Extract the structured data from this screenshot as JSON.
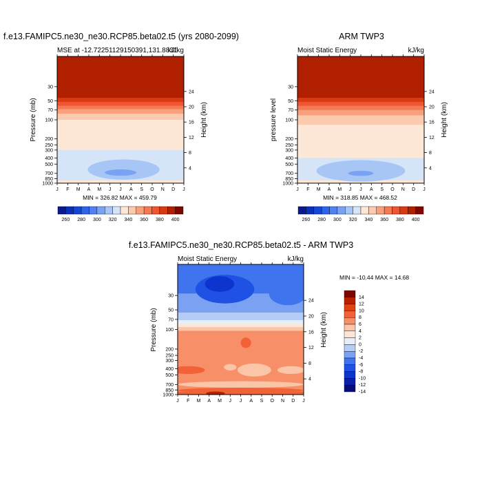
{
  "chart_data": [
    {
      "type": "heatmap",
      "title": "f.e13.FAMIPC5.ne30_ne30.RCP85.beta02.t5 (yrs 2080-2099)",
      "left_label": "MSE at -12.72251129150391,131.8831",
      "right_label": "kJ/kg",
      "ylabel": "Pressure (mb)",
      "ylabel_right": "Height (km)",
      "min_max_text": "MIN = 326.82 MAX = 459.79",
      "min": 326.82,
      "max": 459.79,
      "x_ticks": [
        "J",
        "F",
        "M",
        "A",
        "M",
        "J",
        "J",
        "A",
        "S",
        "O",
        "N",
        "D",
        "J"
      ],
      "colorbar_labels": [
        "260",
        "280",
        "300",
        "320",
        "340",
        "360",
        "380",
        "400"
      ],
      "bands": [
        {
          "p_top": 10,
          "p_bot": 45,
          "value": 405
        },
        {
          "p_top": 45,
          "p_bot": 52,
          "value": 395
        },
        {
          "p_top": 52,
          "p_bot": 60,
          "value": 385
        },
        {
          "p_top": 60,
          "p_bot": 68,
          "value": 375
        },
        {
          "p_top": 68,
          "p_bot": 80,
          "value": 365
        },
        {
          "p_top": 80,
          "p_bot": 100,
          "value": 355
        },
        {
          "p_top": 100,
          "p_bot": 300,
          "value": 345
        },
        {
          "p_top": 300,
          "p_bot": 1000,
          "value": 335
        }
      ],
      "blobs": [
        {
          "cx": 6.3,
          "p": 610,
          "rx": 3.4,
          "ry_log": 0.16,
          "value": 325
        },
        {
          "cx": 6.0,
          "p": 680,
          "rx": 1.5,
          "ry_log": 0.05,
          "value": 315
        }
      ],
      "surface_value": 340
    },
    {
      "type": "heatmap",
      "title": "ARM TWP3",
      "left_label": "Moist Static Energy",
      "right_label": "kJ/kg",
      "ylabel": "pressure level",
      "ylabel_right": "Height (km)",
      "min_max_text": "MIN = 318.85 MAX = 468.52",
      "min": 318.85,
      "max": 468.52,
      "x_ticks": [
        "J",
        "F",
        "M",
        "A",
        "M",
        "J",
        "J",
        "A",
        "S",
        "O",
        "N",
        "D",
        "J"
      ],
      "colorbar_labels": [
        "260",
        "280",
        "300",
        "320",
        "340",
        "360",
        "380",
        "400"
      ],
      "bands": [
        {
          "p_top": 10,
          "p_bot": 45,
          "value": 405
        },
        {
          "p_top": 45,
          "p_bot": 52,
          "value": 395
        },
        {
          "p_top": 52,
          "p_bot": 60,
          "value": 385
        },
        {
          "p_top": 60,
          "p_bot": 70,
          "value": 375
        },
        {
          "p_top": 70,
          "p_bot": 85,
          "value": 365
        },
        {
          "p_top": 85,
          "p_bot": 120,
          "value": 355
        },
        {
          "p_top": 120,
          "p_bot": 400,
          "value": 345
        },
        {
          "p_top": 400,
          "p_bot": 1000,
          "value": 335
        }
      ],
      "blobs": [
        {
          "cx": 6.0,
          "p": 640,
          "rx": 4.2,
          "ry_log": 0.17,
          "value": 325
        },
        {
          "cx": 6.0,
          "p": 700,
          "rx": 1.2,
          "ry_log": 0.04,
          "value": 315
        }
      ],
      "surface_value": 340
    },
    {
      "type": "heatmap",
      "title": "f.e13.FAMIPC5.ne30_ne30.RCP85.beta02.t5 - ARM TWP3",
      "left_label": "Moist Static Energy",
      "right_label": "kJ/kg",
      "ylabel": "Pressure (mb)",
      "ylabel_right": "Height (km)",
      "min_max_text": "MIN = -10.44 MAX =  14.68",
      "min": -10.44,
      "max": 14.68,
      "x_ticks": [
        "J",
        "F",
        "M",
        "A",
        "M",
        "J",
        "J",
        "A",
        "S",
        "O",
        "N",
        "D",
        "J"
      ],
      "colorbar_labels": [
        "14",
        "12",
        "10",
        "8",
        "6",
        "4",
        "2",
        "0",
        "-2",
        "-4",
        "-6",
        "-8",
        "-10",
        "-12",
        "-14"
      ],
      "bands": [
        {
          "p_top": 10,
          "p_bot": 28,
          "value": -6
        },
        {
          "p_top": 28,
          "p_bot": 55,
          "value": -4
        },
        {
          "p_top": 55,
          "p_bot": 72,
          "value": -2
        },
        {
          "p_top": 72,
          "p_bot": 82,
          "value": 0
        },
        {
          "p_top": 82,
          "p_bot": 92,
          "value": 2
        },
        {
          "p_top": 92,
          "p_bot": 105,
          "value": 4
        },
        {
          "p_top": 105,
          "p_bot": 1000,
          "value": 6
        }
      ],
      "blobs": [
        {
          "cx": 4.5,
          "p": 24,
          "rx": 2.8,
          "ry_log": 0.22,
          "value": -8
        },
        {
          "cx": 4.0,
          "p": 20,
          "rx": 1.4,
          "ry_log": 0.12,
          "value": -10
        },
        {
          "cx": 10.5,
          "p": 28,
          "rx": 1.8,
          "ry_log": 0.18,
          "value": -6
        },
        {
          "cx": 6.5,
          "p": 160,
          "rx": 0.5,
          "ry_log": 0.08,
          "value": 8
        },
        {
          "cx": 1.0,
          "p": 420,
          "rx": 1.6,
          "ry_log": 0.06,
          "value": 8
        },
        {
          "cx": 7.3,
          "p": 420,
          "rx": 1.6,
          "ry_log": 0.1,
          "value": 4
        },
        {
          "cx": 5.0,
          "p": 380,
          "rx": 0.6,
          "ry_log": 0.05,
          "value": 4
        },
        {
          "cx": 10.8,
          "p": 420,
          "rx": 1.3,
          "ry_log": 0.06,
          "value": 4
        },
        {
          "cx": 6.0,
          "p": 700,
          "rx": 6.0,
          "ry_log": 0.05,
          "value": 4
        },
        {
          "cx": 6.0,
          "p": 860,
          "rx": 6.0,
          "ry_log": 0.04,
          "value": 8
        },
        {
          "cx": 3.6,
          "p": 960,
          "rx": 0.9,
          "ry_log": 0.03,
          "value": 12
        }
      ],
      "surface_value": 8
    }
  ],
  "colorscales": {
    "absolute": [
      {
        "value": 260,
        "color": "#0a1a8c"
      },
      {
        "value": 270,
        "color": "#0a2fb8"
      },
      {
        "value": 280,
        "color": "#1446d8"
      },
      {
        "value": 290,
        "color": "#2e64ec"
      },
      {
        "value": 300,
        "color": "#4f82f0"
      },
      {
        "value": 310,
        "color": "#7aa2f2"
      },
      {
        "value": 320,
        "color": "#a8c6f5"
      },
      {
        "value": 330,
        "color": "#d6e4f8"
      },
      {
        "value": 340,
        "color": "#fde7d6"
      },
      {
        "value": 350,
        "color": "#fbcbaf"
      },
      {
        "value": 360,
        "color": "#f8a07c"
      },
      {
        "value": 370,
        "color": "#f47a54"
      },
      {
        "value": 380,
        "color": "#ef5530"
      },
      {
        "value": 390,
        "color": "#d83a12"
      },
      {
        "value": 400,
        "color": "#b02000"
      },
      {
        "value": 410,
        "color": "#7f0600"
      }
    ],
    "difference": [
      {
        "value": -14,
        "color": "#080d7a"
      },
      {
        "value": -12,
        "color": "#0a1ea8"
      },
      {
        "value": -10,
        "color": "#0d34cc"
      },
      {
        "value": -8,
        "color": "#1f52e4"
      },
      {
        "value": -6,
        "color": "#4074ee"
      },
      {
        "value": -4,
        "color": "#7ba2f2"
      },
      {
        "value": -2,
        "color": "#b5cdf6"
      },
      {
        "value": 0,
        "color": "#e6eefa"
      },
      {
        "value": 2,
        "color": "#fde6d5"
      },
      {
        "value": 4,
        "color": "#fbc5a7"
      },
      {
        "value": 6,
        "color": "#f79068"
      },
      {
        "value": 8,
        "color": "#f26237"
      },
      {
        "value": 10,
        "color": "#e04312"
      },
      {
        "value": 12,
        "color": "#b82200"
      },
      {
        "value": 14,
        "color": "#7f0600"
      }
    ]
  },
  "y_axis": {
    "pressure_ticks": [
      30,
      50,
      70,
      100,
      200,
      250,
      300,
      400,
      500,
      700,
      850,
      1000
    ],
    "height_ticks": [
      4,
      8,
      12,
      16,
      20,
      24
    ]
  }
}
